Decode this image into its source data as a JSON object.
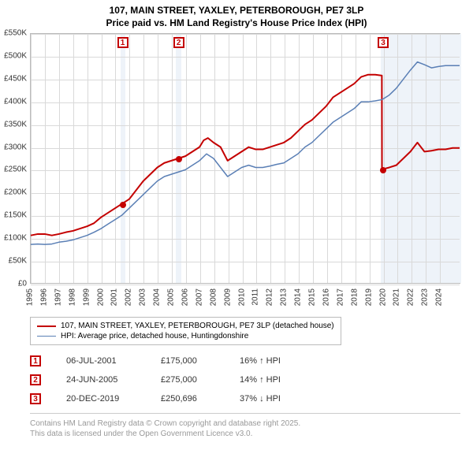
{
  "title": {
    "line1": "107, MAIN STREET, YAXLEY, PETERBOROUGH, PE7 3LP",
    "line2": "Price paid vs. HM Land Registry's House Price Index (HPI)"
  },
  "chart": {
    "type": "line",
    "background_color": "#ffffff",
    "grid_color": "#d9d9d9",
    "axis_color": "#bbbbbb",
    "xlim": [
      1995,
      2025.5
    ],
    "ylim": [
      0,
      550000
    ],
    "y_ticks": [
      0,
      50000,
      100000,
      150000,
      200000,
      250000,
      300000,
      350000,
      400000,
      450000,
      500000,
      550000
    ],
    "y_tick_labels": [
      "£0",
      "£50K",
      "£100K",
      "£150K",
      "£200K",
      "£250K",
      "£300K",
      "£350K",
      "£400K",
      "£450K",
      "£500K",
      "£550K"
    ],
    "x_ticks": [
      1995,
      1996,
      1997,
      1998,
      1999,
      2000,
      2001,
      2002,
      2003,
      2004,
      2005,
      2006,
      2007,
      2008,
      2009,
      2010,
      2011,
      2012,
      2013,
      2014,
      2015,
      2016,
      2017,
      2018,
      2019,
      2020,
      2021,
      2022,
      2023,
      2024
    ],
    "forecast_band": {
      "start": 2020.0,
      "end": 2025.5,
      "color": "#eef3f9"
    },
    "event_bands": [
      {
        "start": 2001.35,
        "end": 2001.7,
        "color": "#eef3f9"
      },
      {
        "start": 2005.3,
        "end": 2005.65,
        "color": "#eef3f9"
      },
      {
        "start": 2019.8,
        "end": 2020.15,
        "color": "#eef3f9"
      }
    ],
    "series": [
      {
        "id": "price_paid",
        "label": "107, MAIN STREET, YAXLEY, PETERBOROUGH, PE7 3LP (detached house)",
        "color": "#c40000",
        "line_width": 2,
        "data": [
          [
            1995.0,
            105000
          ],
          [
            1995.5,
            108000
          ],
          [
            1996.0,
            108000
          ],
          [
            1996.5,
            105000
          ],
          [
            1997.0,
            108000
          ],
          [
            1997.5,
            112000
          ],
          [
            1998.0,
            115000
          ],
          [
            1998.5,
            120000
          ],
          [
            1999.0,
            125000
          ],
          [
            1999.5,
            132000
          ],
          [
            2000.0,
            145000
          ],
          [
            2000.5,
            155000
          ],
          [
            2001.0,
            165000
          ],
          [
            2001.5,
            175000
          ],
          [
            2002.0,
            185000
          ],
          [
            2002.5,
            205000
          ],
          [
            2003.0,
            225000
          ],
          [
            2003.5,
            240000
          ],
          [
            2004.0,
            255000
          ],
          [
            2004.5,
            265000
          ],
          [
            2005.0,
            270000
          ],
          [
            2005.5,
            275000
          ],
          [
            2006.0,
            280000
          ],
          [
            2006.5,
            290000
          ],
          [
            2007.0,
            300000
          ],
          [
            2007.3,
            315000
          ],
          [
            2007.6,
            320000
          ],
          [
            2008.0,
            310000
          ],
          [
            2008.5,
            300000
          ],
          [
            2009.0,
            270000
          ],
          [
            2009.5,
            280000
          ],
          [
            2010.0,
            290000
          ],
          [
            2010.5,
            300000
          ],
          [
            2011.0,
            295000
          ],
          [
            2011.5,
            295000
          ],
          [
            2012.0,
            300000
          ],
          [
            2012.5,
            305000
          ],
          [
            2013.0,
            310000
          ],
          [
            2013.5,
            320000
          ],
          [
            2014.0,
            335000
          ],
          [
            2014.5,
            350000
          ],
          [
            2015.0,
            360000
          ],
          [
            2015.5,
            375000
          ],
          [
            2016.0,
            390000
          ],
          [
            2016.5,
            410000
          ],
          [
            2017.0,
            420000
          ],
          [
            2017.5,
            430000
          ],
          [
            2018.0,
            440000
          ],
          [
            2018.5,
            455000
          ],
          [
            2019.0,
            460000
          ],
          [
            2019.5,
            460000
          ],
          [
            2019.97,
            458000
          ],
          [
            2019.98,
            250696
          ],
          [
            2020.5,
            255000
          ],
          [
            2021.0,
            260000
          ],
          [
            2021.5,
            275000
          ],
          [
            2022.0,
            290000
          ],
          [
            2022.5,
            310000
          ],
          [
            2023.0,
            290000
          ],
          [
            2023.5,
            292000
          ],
          [
            2024.0,
            295000
          ],
          [
            2024.5,
            295000
          ],
          [
            2025.0,
            298000
          ],
          [
            2025.5,
            298000
          ]
        ]
      },
      {
        "id": "hpi",
        "label": "HPI: Average price, detached house, Huntingdonshire",
        "color": "#5a7fb5",
        "line_width": 1.5,
        "data": [
          [
            1995.0,
            85000
          ],
          [
            1995.5,
            86000
          ],
          [
            1996.0,
            85000
          ],
          [
            1996.5,
            86000
          ],
          [
            1997.0,
            90000
          ],
          [
            1997.5,
            92000
          ],
          [
            1998.0,
            95000
          ],
          [
            1998.5,
            100000
          ],
          [
            1999.0,
            105000
          ],
          [
            1999.5,
            112000
          ],
          [
            2000.0,
            120000
          ],
          [
            2000.5,
            130000
          ],
          [
            2001.0,
            140000
          ],
          [
            2001.5,
            150000
          ],
          [
            2002.0,
            165000
          ],
          [
            2002.5,
            180000
          ],
          [
            2003.0,
            195000
          ],
          [
            2003.5,
            210000
          ],
          [
            2004.0,
            225000
          ],
          [
            2004.5,
            235000
          ],
          [
            2005.0,
            240000
          ],
          [
            2005.5,
            245000
          ],
          [
            2006.0,
            250000
          ],
          [
            2006.5,
            260000
          ],
          [
            2007.0,
            270000
          ],
          [
            2007.5,
            285000
          ],
          [
            2008.0,
            275000
          ],
          [
            2008.5,
            255000
          ],
          [
            2009.0,
            235000
          ],
          [
            2009.5,
            245000
          ],
          [
            2010.0,
            255000
          ],
          [
            2010.5,
            260000
          ],
          [
            2011.0,
            255000
          ],
          [
            2011.5,
            255000
          ],
          [
            2012.0,
            258000
          ],
          [
            2012.5,
            262000
          ],
          [
            2013.0,
            265000
          ],
          [
            2013.5,
            275000
          ],
          [
            2014.0,
            285000
          ],
          [
            2014.5,
            300000
          ],
          [
            2015.0,
            310000
          ],
          [
            2015.5,
            325000
          ],
          [
            2016.0,
            340000
          ],
          [
            2016.5,
            355000
          ],
          [
            2017.0,
            365000
          ],
          [
            2017.5,
            375000
          ],
          [
            2018.0,
            385000
          ],
          [
            2018.5,
            400000
          ],
          [
            2019.0,
            400000
          ],
          [
            2019.5,
            402000
          ],
          [
            2020.0,
            405000
          ],
          [
            2020.5,
            415000
          ],
          [
            2021.0,
            430000
          ],
          [
            2021.5,
            450000
          ],
          [
            2022.0,
            470000
          ],
          [
            2022.5,
            488000
          ],
          [
            2023.0,
            482000
          ],
          [
            2023.5,
            475000
          ],
          [
            2024.0,
            478000
          ],
          [
            2024.5,
            480000
          ],
          [
            2025.0,
            480000
          ],
          [
            2025.5,
            480000
          ]
        ]
      }
    ],
    "markers": [
      {
        "n": 1,
        "x": 2001.51,
        "y": 175000,
        "color": "#c40000"
      },
      {
        "n": 2,
        "x": 2005.48,
        "y": 275000,
        "color": "#c40000"
      },
      {
        "n": 3,
        "x": 2019.97,
        "y": 250696,
        "color": "#c40000"
      }
    ]
  },
  "legend": {
    "items": [
      {
        "color": "#c40000",
        "width": 2,
        "label_path": "chart.series.0.label"
      },
      {
        "color": "#5a7fb5",
        "width": 1.5,
        "label_path": "chart.series.1.label"
      }
    ]
  },
  "events": [
    {
      "n": 1,
      "date": "06-JUL-2001",
      "price": "£175,000",
      "delta": "16% ↑ HPI",
      "color": "#c40000"
    },
    {
      "n": 2,
      "date": "24-JUN-2005",
      "price": "£275,000",
      "delta": "14% ↑ HPI",
      "color": "#c40000"
    },
    {
      "n": 3,
      "date": "20-DEC-2019",
      "price": "£250,696",
      "delta": "37% ↓ HPI",
      "color": "#c40000"
    }
  ],
  "footer": {
    "line1": "Contains HM Land Registry data © Crown copyright and database right 2025.",
    "line2": "This data is licensed under the Open Government Licence v3.0."
  }
}
